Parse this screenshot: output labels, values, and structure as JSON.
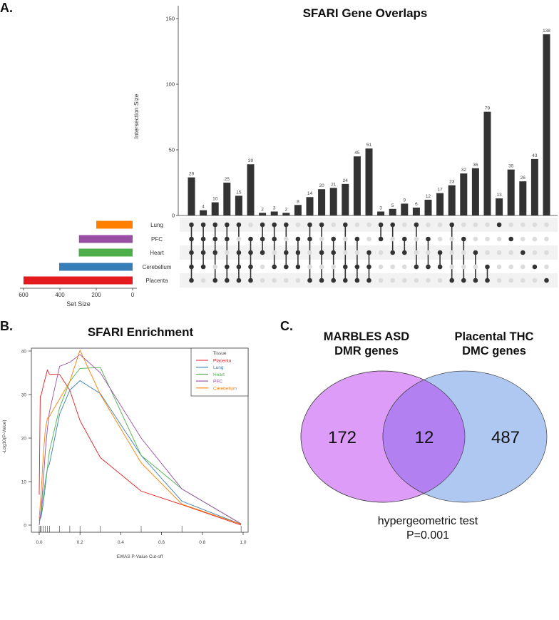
{
  "chart_data": [
    {
      "type": "bar",
      "panel_label": "A.",
      "title": "SFARI Gene Overlaps",
      "ylabel": "Intersection Size",
      "ylim": [
        0,
        150
      ],
      "yticks": [
        0,
        50,
        100,
        150
      ],
      "sets": [
        {
          "name": "Lung",
          "size": 200,
          "color": "#ff7f00"
        },
        {
          "name": "PFC",
          "size": 295,
          "color": "#984ea3"
        },
        {
          "name": "Heart",
          "size": 296,
          "color": "#4daf4a"
        },
        {
          "name": "Cerebellum",
          "size": 404,
          "color": "#377eb8"
        },
        {
          "name": "Placenta",
          "size": 600,
          "color": "#e41a1c"
        }
      ],
      "set_size_axis": {
        "label": "Set Size",
        "ticks": [
          600,
          400,
          200,
          0
        ]
      },
      "intersections": [
        {
          "members": [
            "Lung",
            "PFC",
            "Heart",
            "Cerebellum",
            "Placenta"
          ],
          "size": 29
        },
        {
          "members": [
            "Lung",
            "PFC",
            "Heart",
            "Cerebellum"
          ],
          "size": 4
        },
        {
          "members": [
            "Lung",
            "PFC",
            "Heart",
            "Placenta"
          ],
          "size": 10
        },
        {
          "members": [
            "Lung",
            "PFC",
            "Cerebellum",
            "Placenta"
          ],
          "size": 25
        },
        {
          "members": [
            "Lung",
            "Heart",
            "Cerebellum",
            "Placenta"
          ],
          "size": 15
        },
        {
          "members": [
            "PFC",
            "Heart",
            "Cerebellum",
            "Placenta"
          ],
          "size": 39
        },
        {
          "members": [
            "Lung",
            "PFC",
            "Heart"
          ],
          "size": 2
        },
        {
          "members": [
            "Lung",
            "PFC",
            "Cerebellum"
          ],
          "size": 3
        },
        {
          "members": [
            "Lung",
            "Heart",
            "Cerebellum"
          ],
          "size": 2
        },
        {
          "members": [
            "PFC",
            "Heart",
            "Cerebellum"
          ],
          "size": 8
        },
        {
          "members": [
            "Lung",
            "PFC",
            "Placenta"
          ],
          "size": 14
        },
        {
          "members": [
            "Lung",
            "Heart",
            "Placenta"
          ],
          "size": 20
        },
        {
          "members": [
            "PFC",
            "Heart",
            "Placenta"
          ],
          "size": 21
        },
        {
          "members": [
            "Lung",
            "Cerebellum",
            "Placenta"
          ],
          "size": 24
        },
        {
          "members": [
            "PFC",
            "Cerebellum",
            "Placenta"
          ],
          "size": 45
        },
        {
          "members": [
            "Heart",
            "Cerebellum",
            "Placenta"
          ],
          "size": 51
        },
        {
          "members": [
            "Lung",
            "PFC"
          ],
          "size": 3
        },
        {
          "members": [
            "Lung",
            "Heart"
          ],
          "size": 5
        },
        {
          "members": [
            "PFC",
            "Heart"
          ],
          "size": 9
        },
        {
          "members": [
            "Lung",
            "Cerebellum"
          ],
          "size": 6
        },
        {
          "members": [
            "PFC",
            "Cerebellum"
          ],
          "size": 12
        },
        {
          "members": [
            "Heart",
            "Cerebellum"
          ],
          "size": 17
        },
        {
          "members": [
            "Lung",
            "Placenta"
          ],
          "size": 23
        },
        {
          "members": [
            "PFC",
            "Placenta"
          ],
          "size": 32
        },
        {
          "members": [
            "Heart",
            "Placenta"
          ],
          "size": 36
        },
        {
          "members": [
            "Cerebellum",
            "Placenta"
          ],
          "size": 79
        },
        {
          "members": [
            "Lung"
          ],
          "size": 13
        },
        {
          "members": [
            "PFC"
          ],
          "size": 35
        },
        {
          "members": [
            "Heart"
          ],
          "size": 26
        },
        {
          "members": [
            "Cerebellum"
          ],
          "size": 43
        },
        {
          "members": [
            "Placenta"
          ],
          "size": 138
        }
      ],
      "bar_color": "#333333"
    },
    {
      "type": "line",
      "panel_label": "B.",
      "title": "SFARI Enrichment",
      "xlabel": "EWAS P-Value Cut-off",
      "ylabel": "-Log10(P-Value)",
      "xlim": [
        0,
        1
      ],
      "ylim": [
        0,
        40
      ],
      "xticks": [
        "0.0",
        "0.2",
        "0.4",
        "0.6",
        "0.8",
        "1.0"
      ],
      "yticks": [
        "0",
        "10",
        "20",
        "30",
        "40"
      ],
      "legend": {
        "title": "Tissue",
        "placement": "top-right"
      },
      "rug": [
        0,
        0.005,
        0.01,
        0.02,
        0.03,
        0.04,
        0.05,
        0.1,
        0.15,
        0.2,
        0.3,
        0.5,
        0.7,
        0.99
      ],
      "series": [
        {
          "name": "Placenta",
          "color": "#e41a1c",
          "x": [
            0,
            0.001,
            0.005,
            0.01,
            0.02,
            0.04,
            0.05,
            0.1,
            0.15,
            0.2,
            0.3,
            0.5,
            0.7,
            0.99
          ],
          "y": [
            7,
            11.5,
            29.5,
            30,
            32,
            35.6,
            34.7,
            34.6,
            31,
            24,
            15.5,
            7.8,
            4.7,
            0
          ]
        },
        {
          "name": "Lung",
          "color": "#377eb8",
          "x": [
            0,
            0.01,
            0.02,
            0.03,
            0.04,
            0.05,
            0.1,
            0.15,
            0.2,
            0.3,
            0.5,
            0.7,
            0.99
          ],
          "y": [
            1,
            2,
            5,
            9,
            13,
            14,
            25.5,
            31,
            33.2,
            30.2,
            16,
            5.5,
            0.2
          ]
        },
        {
          "name": "Heart",
          "color": "#4daf4a",
          "x": [
            0,
            0.01,
            0.02,
            0.03,
            0.04,
            0.05,
            0.1,
            0.15,
            0.2,
            0.3,
            0.5,
            0.7,
            0.99
          ],
          "y": [
            1,
            3,
            7,
            10,
            13,
            17,
            27,
            33,
            36,
            36.2,
            16,
            8.3,
            0.3
          ]
        },
        {
          "name": "PFC",
          "color": "#984ea3",
          "x": [
            0,
            0.01,
            0.02,
            0.03,
            0.04,
            0.05,
            0.1,
            0.15,
            0.2,
            0.3,
            0.5,
            0.7,
            0.99
          ],
          "y": [
            0,
            4,
            10,
            17,
            22,
            26,
            36.5,
            37.4,
            39.2,
            35,
            20,
            8.3,
            0.3
          ]
        },
        {
          "name": "Cerebellum",
          "color": "#ff7f00",
          "x": [
            0,
            0.01,
            0.02,
            0.03,
            0.04,
            0.05,
            0.1,
            0.15,
            0.2,
            0.3,
            0.5,
            0.7,
            0.99
          ],
          "y": [
            1.5,
            8,
            16,
            22,
            24.5,
            25,
            29,
            33,
            40.2,
            30,
            14.3,
            4.8,
            0.2
          ]
        }
      ]
    },
    {
      "type": "venn",
      "panel_label": "C.",
      "sets": [
        {
          "label_line1": "MARBLES ASD",
          "label_line2": "DMR genes",
          "only": "172",
          "color": "#dc9cf8"
        },
        {
          "label_line1": "Placental THC",
          "label_line2": "DMC genes",
          "only": "487",
          "color": "#afc8f2"
        }
      ],
      "overlap": "12",
      "overlap_color": "#b380f2",
      "note_line1": "hypergeometric test",
      "note_line2": "P=0.001"
    }
  ]
}
